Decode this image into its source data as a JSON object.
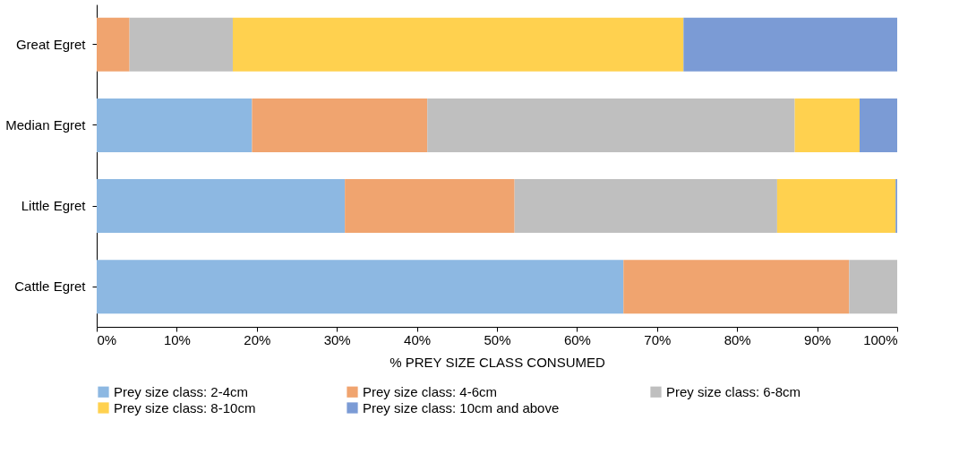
{
  "chart_data": {
    "type": "bar",
    "orientation": "horizontal",
    "stacked": true,
    "xlabel": "% PREY SIZE CLASS CONSUMED",
    "categories": [
      "Great Egret",
      "Median Egret",
      "Little Egret",
      "Cattle Egret"
    ],
    "series": [
      {
        "name": "Prey size class: 2-4cm",
        "color": "#8db8e2",
        "values": [
          0,
          19.4,
          31.0,
          65.8
        ]
      },
      {
        "name": "Prey size class: 4-6cm",
        "color": "#f0a46f",
        "values": [
          4.1,
          21.9,
          21.2,
          28.2
        ]
      },
      {
        "name": "Prey size class: 6-8cm",
        "color": "#bfbfbf",
        "values": [
          12.9,
          45.9,
          32.8,
          6.0
        ]
      },
      {
        "name": "Prey size class: 8-10cm",
        "color": "#ffd14f",
        "values": [
          56.3,
          8.1,
          14.8,
          0
        ]
      },
      {
        "name": "Prey size class: 10cm and above",
        "color": "#7b9bd5",
        "values": [
          26.7,
          4.7,
          0.2,
          0
        ]
      }
    ],
    "xlim": [
      0,
      100
    ],
    "xticks": [
      {
        "value": 0,
        "label": "0%"
      },
      {
        "value": 10,
        "label": "10%"
      },
      {
        "value": 20,
        "label": "20%"
      },
      {
        "value": 30,
        "label": "30%"
      },
      {
        "value": 40,
        "label": "40%"
      },
      {
        "value": 50,
        "label": "50%"
      },
      {
        "value": 60,
        "label": "60%"
      },
      {
        "value": 70,
        "label": "70%"
      },
      {
        "value": 80,
        "label": "80%"
      },
      {
        "value": 90,
        "label": "90%"
      },
      {
        "value": 100,
        "label": "100%"
      }
    ],
    "grid": false,
    "legend": "bottom"
  }
}
